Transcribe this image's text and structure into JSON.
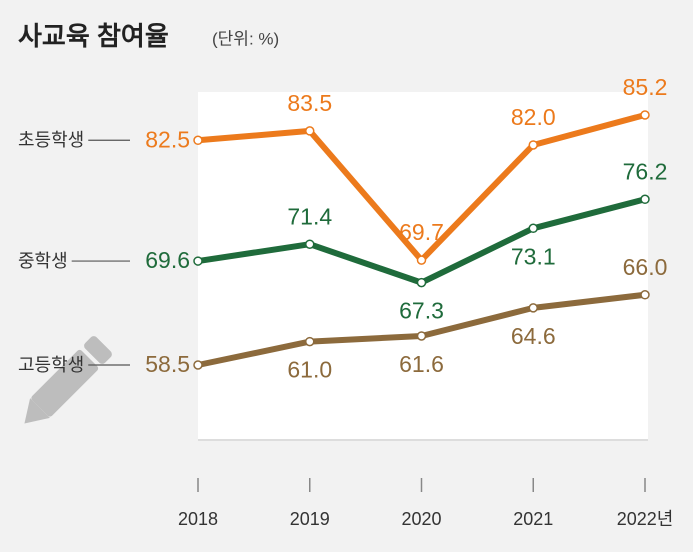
{
  "chart_data": {
    "type": "line",
    "title": "사교육 참여율",
    "subtitle": "(단위: %)",
    "categories": [
      "2018",
      "2019",
      "2020",
      "2021",
      "2022년"
    ],
    "series": [
      {
        "name": "초등학생",
        "color": "#ec7a1c",
        "values": [
          82.5,
          83.5,
          69.7,
          82.0,
          85.2
        ],
        "value_labels": [
          "82.5",
          "83.5",
          "69.7",
          "82.0",
          "85.2"
        ]
      },
      {
        "name": "중학생",
        "color": "#1f6b3b",
        "values": [
          69.6,
          71.4,
          67.3,
          73.1,
          76.2
        ],
        "value_labels": [
          "69.6",
          "71.4",
          "67.3",
          "73.1",
          "76.2"
        ]
      },
      {
        "name": "고등학생",
        "color": "#8c6a3c",
        "values": [
          58.5,
          61.0,
          61.6,
          64.6,
          66.0
        ],
        "value_labels": [
          "58.5",
          "61.0",
          "61.6",
          "64.6",
          "66.0"
        ]
      }
    ]
  }
}
